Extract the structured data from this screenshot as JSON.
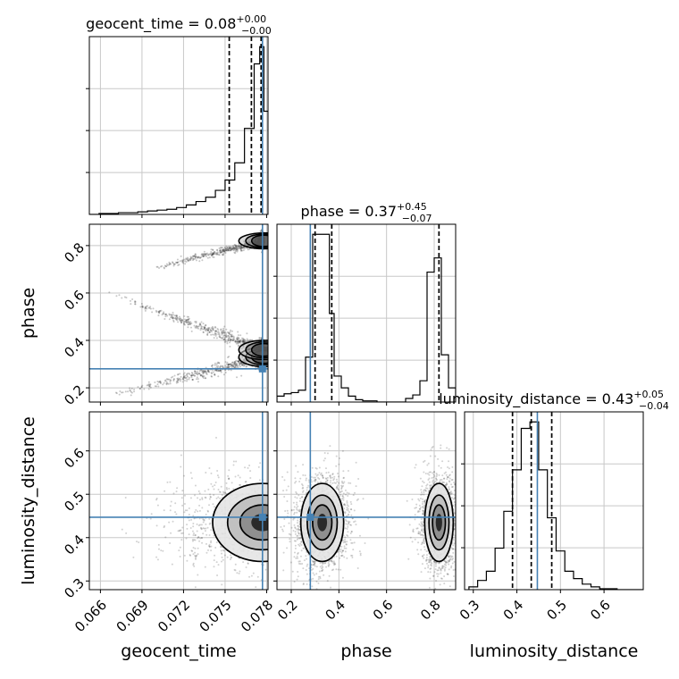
{
  "chart_data": {
    "type": "corner",
    "parameters": [
      "geocent_time",
      "phase",
      "luminosity_distance"
    ],
    "truth": {
      "geocent_time": 0.0777,
      "phase": 0.28,
      "luminosity_distance": 0.447
    },
    "truth_color": "#4682b4",
    "grid": true,
    "titles": [
      {
        "param": "geocent_time",
        "prefix": "geocent_time = 0.08",
        "plus": "+0.00",
        "minus": "−0.00"
      },
      {
        "param": "phase",
        "prefix": "phase = 0.37",
        "plus": "+0.45",
        "minus": "−0.07"
      },
      {
        "param": "luminosity_distance",
        "prefix": "luminosity_distance = 0.43",
        "plus": "+0.05",
        "minus": "−0.04"
      }
    ],
    "axes": {
      "geocent_time": {
        "range": [
          0.0652,
          0.0781
        ],
        "ticks": [
          0.066,
          0.069,
          0.072,
          0.075,
          0.078
        ],
        "tick_labels": [
          "0.066",
          "0.069",
          "0.072",
          "0.075",
          "0.078"
        ],
        "label": "geocent_time"
      },
      "phase": {
        "range": [
          0.14,
          0.89
        ],
        "ticks_x": [
          0.2,
          0.4,
          0.6,
          0.8
        ],
        "tick_labels_x": [
          "0.2",
          "0.4",
          "0.6",
          "0.8"
        ],
        "ticks_y": [
          0.2,
          0.4,
          0.6,
          0.8
        ],
        "tick_labels_y": [
          "0.2",
          "0.4",
          "0.6",
          "0.8"
        ],
        "label": "phase"
      },
      "luminosity_distance": {
        "range": [
          0.28,
          0.69
        ],
        "ticks": [
          0.3,
          0.4,
          0.5,
          0.6
        ],
        "tick_labels": [
          "0.3",
          "0.4",
          "0.5",
          "0.6"
        ],
        "label": "luminosity_distance"
      }
    },
    "histograms": {
      "geocent_time": {
        "quantiles": [
          0.0753,
          0.0769,
          0.0776
        ],
        "bins": [
          {
            "x0": 0.0652,
            "x1": 0.0659,
            "count": 0
          },
          {
            "x0": 0.0659,
            "x1": 0.0666,
            "count": 1
          },
          {
            "x0": 0.0666,
            "x1": 0.0673,
            "count": 1
          },
          {
            "x0": 0.0673,
            "x1": 0.068,
            "count": 2
          },
          {
            "x0": 0.068,
            "x1": 0.0687,
            "count": 2
          },
          {
            "x0": 0.0687,
            "x1": 0.0694,
            "count": 3
          },
          {
            "x0": 0.0694,
            "x1": 0.0701,
            "count": 4
          },
          {
            "x0": 0.0701,
            "x1": 0.0708,
            "count": 5
          },
          {
            "x0": 0.0708,
            "x1": 0.0715,
            "count": 6
          },
          {
            "x0": 0.0715,
            "x1": 0.0722,
            "count": 8
          },
          {
            "x0": 0.0722,
            "x1": 0.0729,
            "count": 11
          },
          {
            "x0": 0.0729,
            "x1": 0.0736,
            "count": 15
          },
          {
            "x0": 0.0736,
            "x1": 0.0743,
            "count": 20
          },
          {
            "x0": 0.0743,
            "x1": 0.075,
            "count": 28
          },
          {
            "x0": 0.075,
            "x1": 0.0757,
            "count": 40
          },
          {
            "x0": 0.0757,
            "x1": 0.0764,
            "count": 60
          },
          {
            "x0": 0.0764,
            "x1": 0.0771,
            "count": 100
          },
          {
            "x0": 0.0771,
            "x1": 0.0775,
            "count": 175
          },
          {
            "x0": 0.0775,
            "x1": 0.0778,
            "count": 195
          },
          {
            "x0": 0.0778,
            "x1": 0.0781,
            "count": 120
          }
        ]
      },
      "phase": {
        "quantiles": [
          0.3,
          0.37,
          0.82
        ],
        "bins": [
          {
            "x0": 0.14,
            "x1": 0.17,
            "count": 5
          },
          {
            "x0": 0.17,
            "x1": 0.2,
            "count": 7
          },
          {
            "x0": 0.2,
            "x1": 0.23,
            "count": 8
          },
          {
            "x0": 0.23,
            "x1": 0.26,
            "count": 10
          },
          {
            "x0": 0.26,
            "x1": 0.29,
            "count": 38
          },
          {
            "x0": 0.29,
            "x1": 0.33,
            "count": 142
          },
          {
            "x0": 0.33,
            "x1": 0.36,
            "count": 142
          },
          {
            "x0": 0.36,
            "x1": 0.38,
            "count": 75
          },
          {
            "x0": 0.38,
            "x1": 0.41,
            "count": 22
          },
          {
            "x0": 0.41,
            "x1": 0.44,
            "count": 12
          },
          {
            "x0": 0.44,
            "x1": 0.47,
            "count": 5
          },
          {
            "x0": 0.47,
            "x1": 0.5,
            "count": 2
          },
          {
            "x0": 0.5,
            "x1": 0.53,
            "count": 1
          },
          {
            "x0": 0.53,
            "x1": 0.56,
            "count": 1
          },
          {
            "x0": 0.56,
            "x1": 0.59,
            "count": 0
          },
          {
            "x0": 0.59,
            "x1": 0.62,
            "count": 0
          },
          {
            "x0": 0.62,
            "x1": 0.65,
            "count": 0
          },
          {
            "x0": 0.65,
            "x1": 0.68,
            "count": 0
          },
          {
            "x0": 0.68,
            "x1": 0.71,
            "count": 3
          },
          {
            "x0": 0.71,
            "x1": 0.74,
            "count": 6
          },
          {
            "x0": 0.74,
            "x1": 0.77,
            "count": 18
          },
          {
            "x0": 0.77,
            "x1": 0.8,
            "count": 110
          },
          {
            "x0": 0.8,
            "x1": 0.83,
            "count": 122
          },
          {
            "x0": 0.83,
            "x1": 0.86,
            "count": 40
          },
          {
            "x0": 0.86,
            "x1": 0.89,
            "count": 12
          }
        ]
      },
      "luminosity_distance": {
        "quantiles": [
          0.39,
          0.433,
          0.48
        ],
        "bins": [
          {
            "x0": 0.29,
            "x1": 0.31,
            "count": 3
          },
          {
            "x0": 0.31,
            "x1": 0.33,
            "count": 10
          },
          {
            "x0": 0.33,
            "x1": 0.35,
            "count": 20
          },
          {
            "x0": 0.35,
            "x1": 0.37,
            "count": 45
          },
          {
            "x0": 0.37,
            "x1": 0.39,
            "count": 85
          },
          {
            "x0": 0.39,
            "x1": 0.41,
            "count": 130
          },
          {
            "x0": 0.41,
            "x1": 0.43,
            "count": 175
          },
          {
            "x0": 0.43,
            "x1": 0.45,
            "count": 182
          },
          {
            "x0": 0.45,
            "x1": 0.47,
            "count": 130
          },
          {
            "x0": 0.47,
            "x1": 0.49,
            "count": 78
          },
          {
            "x0": 0.49,
            "x1": 0.51,
            "count": 42
          },
          {
            "x0": 0.51,
            "x1": 0.53,
            "count": 20
          },
          {
            "x0": 0.53,
            "x1": 0.55,
            "count": 12
          },
          {
            "x0": 0.55,
            "x1": 0.57,
            "count": 6
          },
          {
            "x0": 0.57,
            "x1": 0.59,
            "count": 3
          },
          {
            "x0": 0.59,
            "x1": 0.61,
            "count": 1
          },
          {
            "x0": 0.61,
            "x1": 0.63,
            "count": 1
          },
          {
            "x0": 0.63,
            "x1": 0.69,
            "count": 0
          }
        ]
      }
    },
    "scatter_2d": [
      {
        "x": "geocent_time",
        "y": "phase",
        "branches": [
          {
            "from": [
              0.0662,
              0.16
            ],
            "to": [
              0.0778,
              0.33
            ],
            "spread": 0.03
          },
          {
            "from": [
              0.0665,
              0.6
            ],
            "to": [
              0.0778,
              0.36
            ],
            "spread": 0.03
          },
          {
            "from": [
              0.069,
              0.69
            ],
            "to": [
              0.0778,
              0.82
            ],
            "spread": 0.02
          }
        ]
      },
      {
        "x": "geocent_time",
        "y": "luminosity_distance",
        "clusters": [
          {
            "center": [
              0.0777,
              0.435
            ],
            "spread": [
              0.0018,
              0.045
            ]
          }
        ]
      },
      {
        "x": "phase",
        "y": "luminosity_distance",
        "clusters": [
          {
            "center": [
              0.33,
              0.435
            ],
            "spread": [
              0.045,
              0.045
            ]
          },
          {
            "center": [
              0.82,
              0.435
            ],
            "spread": [
              0.03,
              0.045
            ]
          }
        ]
      }
    ]
  }
}
